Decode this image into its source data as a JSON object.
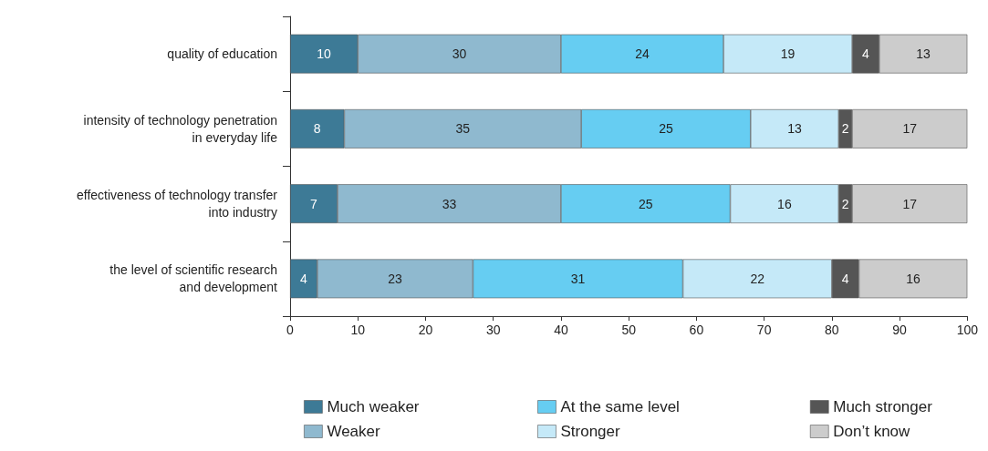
{
  "chart_data": {
    "type": "bar",
    "orientation": "horizontal",
    "stacked": true,
    "data_labels": true,
    "legend": "bottom",
    "grid": false,
    "categories": [
      "quality of education",
      "intensity of technology penetration\nin everyday life",
      "effectiveness of technology transfer\ninto industry",
      "the level of scientific research\nand development"
    ],
    "xlim": [
      0,
      100
    ],
    "xticks": [
      0,
      10,
      20,
      30,
      40,
      50,
      60,
      70,
      80,
      90,
      100
    ],
    "series": [
      {
        "name": "Much weaker",
        "color": "#3d7a96",
        "values": [
          10,
          8,
          7,
          4
        ]
      },
      {
        "name": "Weaker",
        "color": "#8fb9cf",
        "values": [
          30,
          35,
          33,
          23
        ]
      },
      {
        "name": "At the same level",
        "color": "#66cdf2",
        "values": [
          24,
          25,
          25,
          31
        ]
      },
      {
        "name": "Stronger",
        "color": "#c5e9f8",
        "values": [
          19,
          13,
          16,
          22
        ]
      },
      {
        "name": "Much stronger",
        "color": "#555555",
        "values": [
          4,
          2,
          2,
          4
        ]
      },
      {
        "name": "Don’t know",
        "color": "#cccccc",
        "values": [
          13,
          17,
          17,
          16
        ]
      }
    ]
  }
}
